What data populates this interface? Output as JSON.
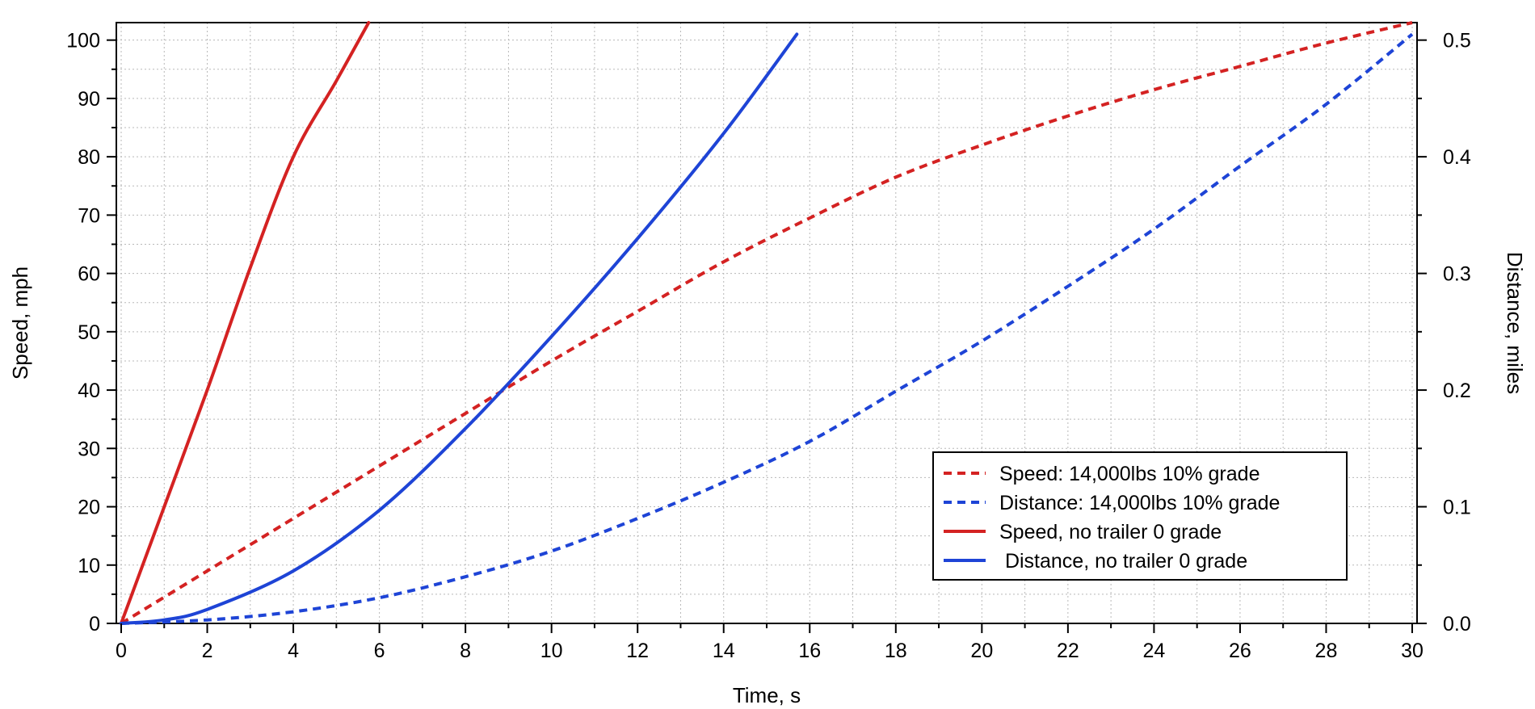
{
  "chart_data": {
    "type": "line",
    "xlabel": "Time, s",
    "ylabel_left": "Speed, mph",
    "ylabel_right": "Distance, miles",
    "xlim": [
      0,
      30
    ],
    "ylim_left": [
      0,
      103
    ],
    "ylim_right": [
      0,
      0.515
    ],
    "x_ticks": [
      "0",
      "2",
      "4",
      "6",
      "8",
      "10",
      "12",
      "14",
      "16",
      "18",
      "20",
      "22",
      "24",
      "26",
      "28",
      "30"
    ],
    "y_ticks_left": [
      "0",
      "10",
      "20",
      "30",
      "40",
      "50",
      "60",
      "70",
      "80",
      "90",
      "100"
    ],
    "y_ticks_right": [
      "0.0",
      "0.1",
      "0.2",
      "0.3",
      "0.4",
      "0.5"
    ],
    "grid": true,
    "legend_position": "bottom-right",
    "colors": {
      "red": "#d42222",
      "blue": "#1e44d6",
      "grid": "#b8b8b8"
    },
    "series": [
      {
        "name": "Speed: 14,000lbs 10% grade",
        "axis": "left",
        "style": "dashed",
        "color": "#d42222",
        "x": [
          0,
          2,
          4,
          6,
          8,
          10,
          12,
          14,
          16,
          18,
          20,
          22,
          24,
          26,
          28,
          30
        ],
        "y": [
          0,
          9,
          18,
          27,
          36,
          45,
          53.5,
          62,
          69.5,
          76.5,
          82,
          87,
          91.5,
          95.5,
          99.5,
          103
        ]
      },
      {
        "name": "Distance: 14,000lbs 10% grade",
        "axis": "right",
        "style": "dashed",
        "color": "#1e44d6",
        "x": [
          0,
          2,
          4,
          6,
          8,
          10,
          12,
          14,
          16,
          18,
          20,
          22,
          24,
          26,
          28,
          30
        ],
        "y": [
          0,
          0.003,
          0.01,
          0.022,
          0.04,
          0.062,
          0.09,
          0.121,
          0.156,
          0.199,
          0.242,
          0.289,
          0.338,
          0.392,
          0.445,
          0.505
        ]
      },
      {
        "name": "Speed, no trailer 0 grade",
        "axis": "left",
        "style": "solid",
        "color": "#d42222",
        "x": [
          0,
          1,
          2,
          3,
          4,
          5,
          5.75
        ],
        "y": [
          0,
          20,
          40,
          61,
          80,
          93,
          103
        ]
      },
      {
        "name": " Distance, no trailer 0 grade",
        "axis": "right",
        "style": "solid",
        "color": "#1e44d6",
        "x": [
          0,
          1,
          2,
          4,
          6,
          8,
          10,
          12,
          14,
          15.7
        ],
        "y": [
          0,
          0.003,
          0.012,
          0.045,
          0.097,
          0.167,
          0.246,
          0.33,
          0.42,
          0.505
        ]
      }
    ]
  }
}
